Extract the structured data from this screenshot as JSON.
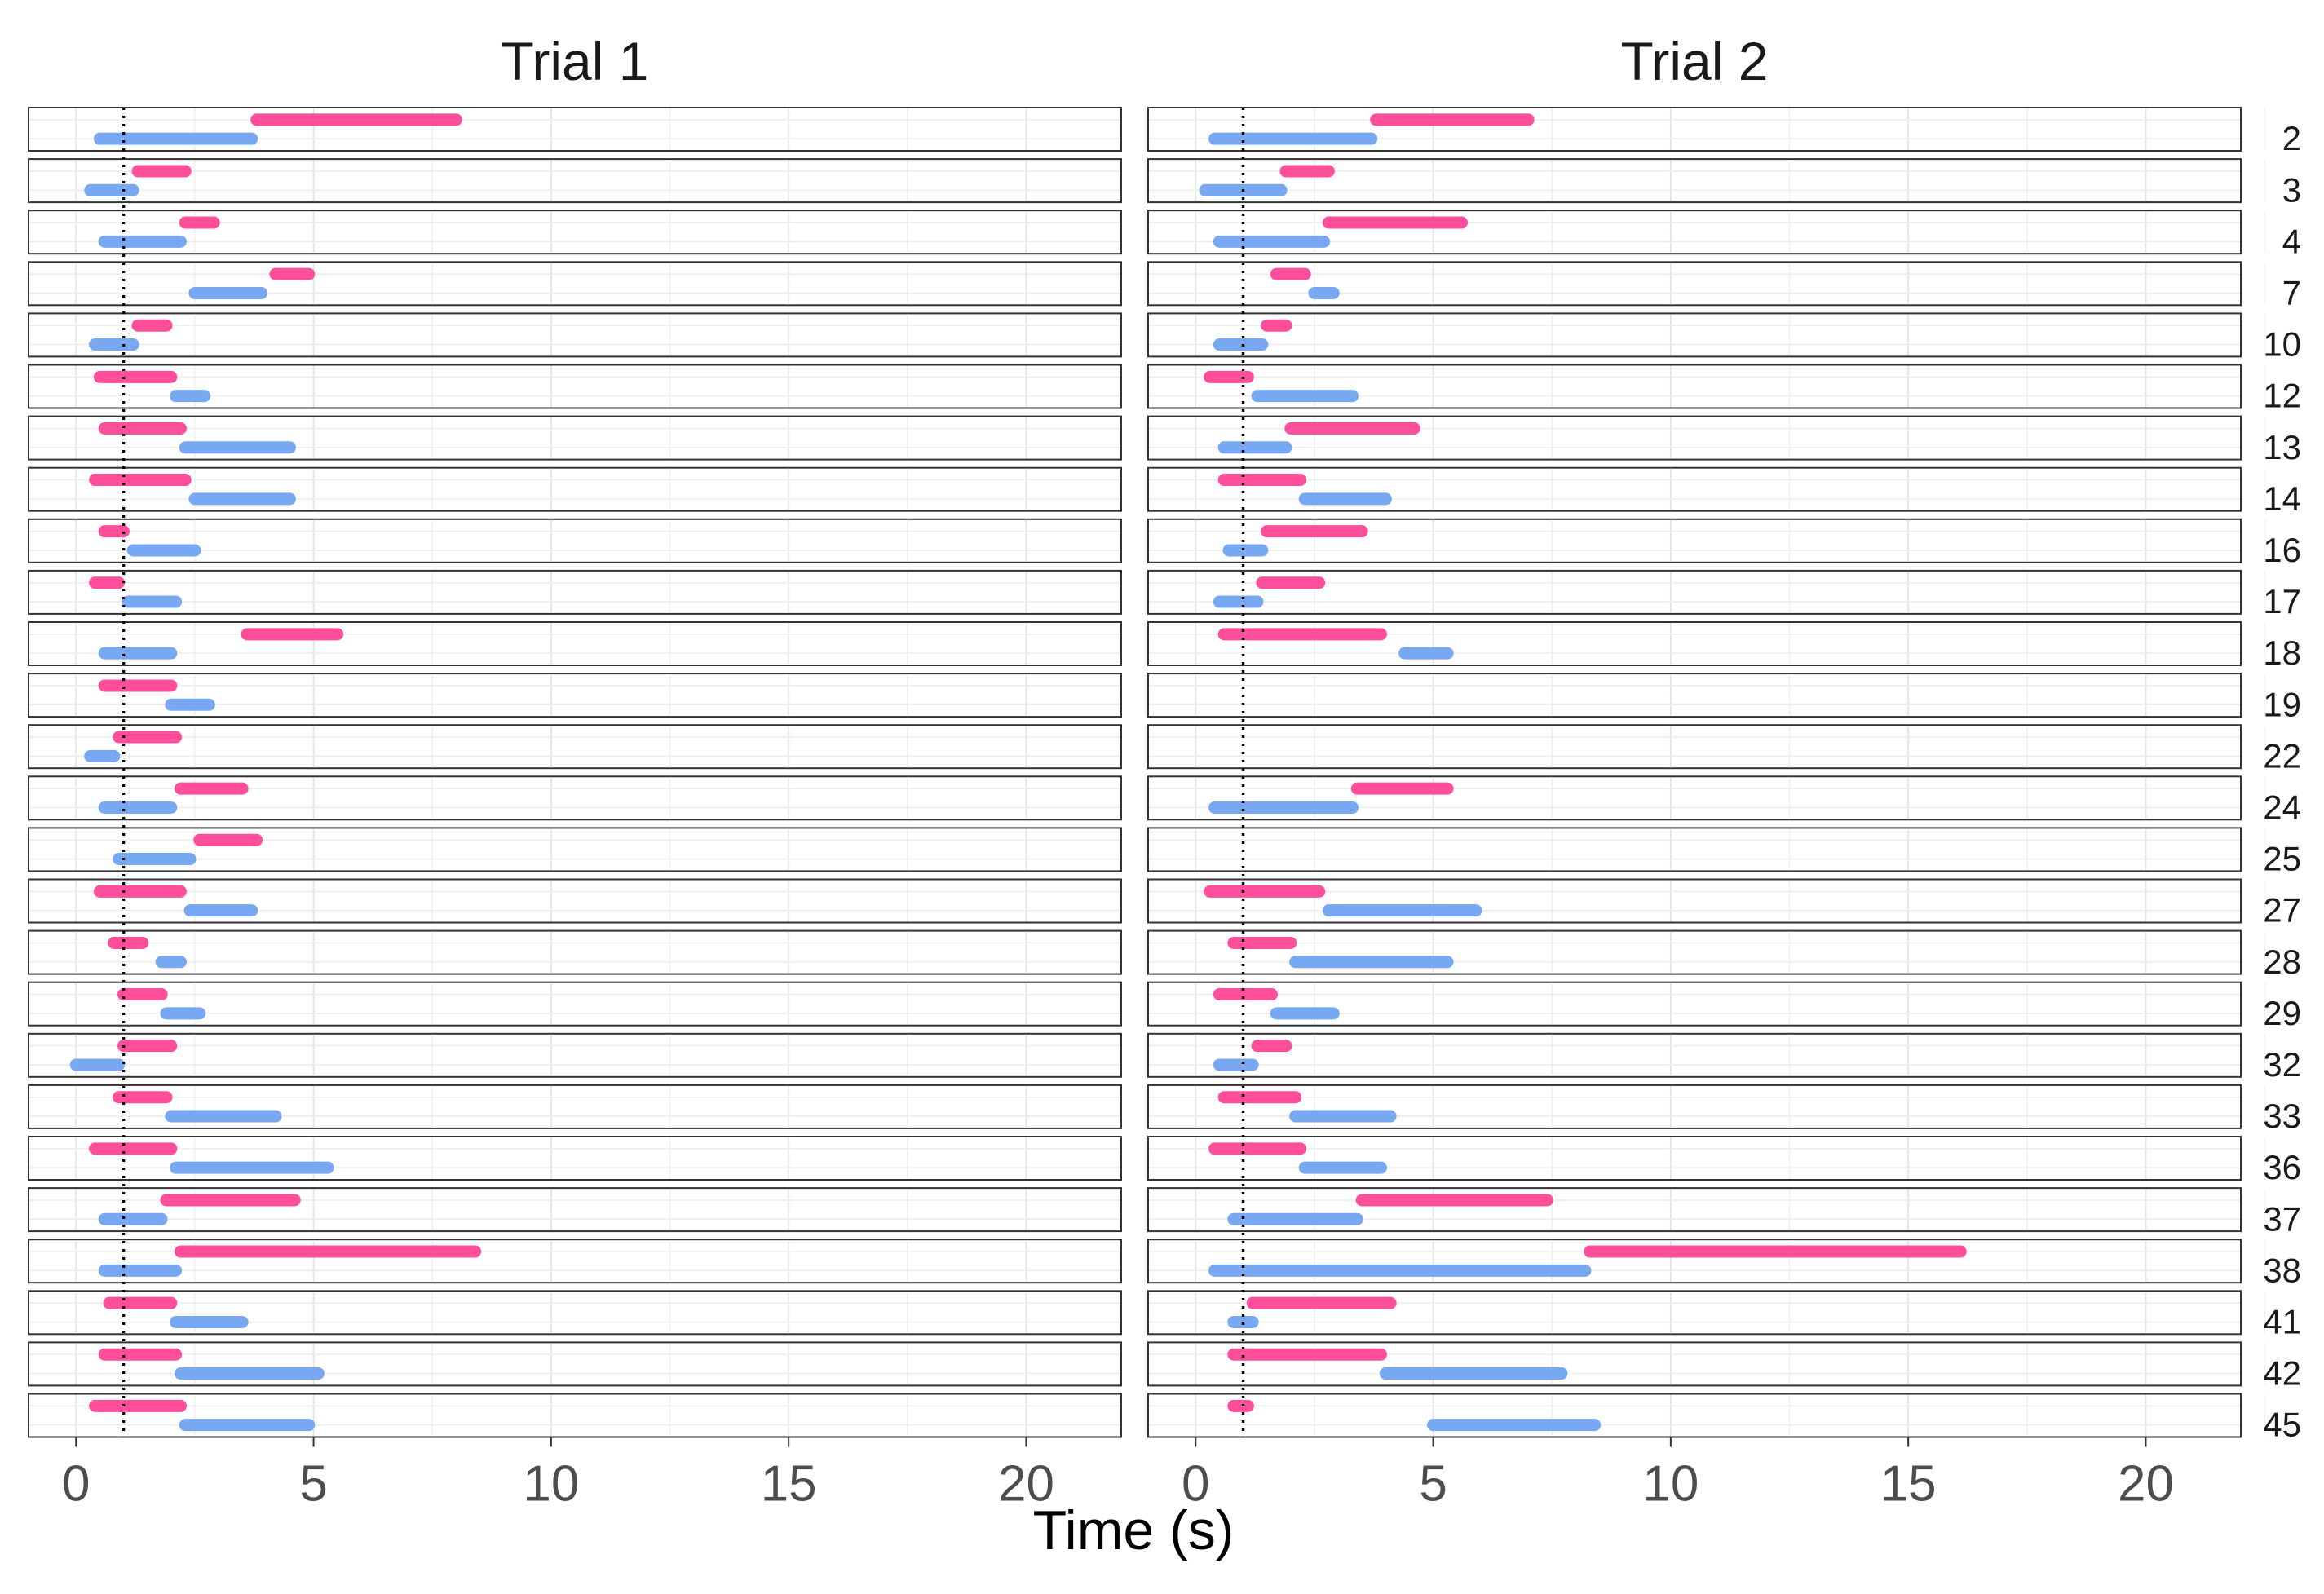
{
  "chart_data": {
    "type": "gantt",
    "xlabel": "Time (s)",
    "xlim": [
      -1,
      22
    ],
    "x_ticks": [
      0,
      5,
      10,
      15,
      20
    ],
    "grid": true,
    "reference_line_x": 1,
    "colors": {
      "pink": "#ff4f9a",
      "blue": "#78a8f2",
      "faint_pink": "#fbd8dc",
      "faint_blue": "#cdf2f5",
      "grid": "#e5e5e5",
      "panel_border": "#333333",
      "panel_bg": "#ffffff"
    },
    "row_labels": [
      "2",
      "3",
      "4",
      "7",
      "10",
      "12",
      "13",
      "14",
      "16",
      "17",
      "18",
      "19",
      "22",
      "24",
      "25",
      "27",
      "28",
      "29",
      "32",
      "33",
      "36",
      "37",
      "38",
      "41",
      "42",
      "45"
    ],
    "panels": [
      {
        "title": "Trial 1",
        "rows": [
          {
            "id": "2",
            "pink": [
              3.8,
              8.0
            ],
            "blue": [
              0.5,
              3.7
            ]
          },
          {
            "id": "3",
            "pink": [
              1.3,
              2.3
            ],
            "blue": [
              0.3,
              1.2
            ]
          },
          {
            "id": "4",
            "pink": [
              2.3,
              2.9
            ],
            "blue": [
              0.6,
              2.2
            ]
          },
          {
            "id": "7",
            "pink": [
              4.2,
              4.9
            ],
            "blue": [
              2.5,
              3.9
            ]
          },
          {
            "id": "10",
            "pink": [
              1.3,
              1.9
            ],
            "blue": [
              0.4,
              1.2
            ]
          },
          {
            "id": "12",
            "pink": [
              0.5,
              2.0
            ],
            "blue": [
              2.1,
              2.7
            ]
          },
          {
            "id": "13",
            "pink": [
              0.6,
              2.2
            ],
            "blue": [
              2.3,
              4.5
            ]
          },
          {
            "id": "14",
            "pink": [
              0.4,
              2.3
            ],
            "blue": [
              2.5,
              4.5
            ]
          },
          {
            "id": "16",
            "pink": [
              0.6,
              1.0
            ],
            "blue": [
              1.2,
              2.5
            ]
          },
          {
            "id": "17",
            "pink": [
              0.4,
              0.9
            ],
            "blue": [
              1.1,
              2.1
            ]
          },
          {
            "id": "18",
            "pink": [
              3.6,
              5.5
            ],
            "blue": [
              0.6,
              2.0
            ]
          },
          {
            "id": "19",
            "pink": [
              0.6,
              2.0
            ],
            "blue": [
              2.0,
              2.8
            ]
          },
          {
            "id": "22",
            "pink": [
              0.9,
              2.1
            ],
            "blue": [
              0.3,
              0.8
            ]
          },
          {
            "id": "24",
            "pink": [
              2.2,
              3.5
            ],
            "blue": [
              0.6,
              2.0
            ]
          },
          {
            "id": "25",
            "pink": [
              2.6,
              3.8
            ],
            "blue": [
              0.9,
              2.4
            ]
          },
          {
            "id": "27",
            "pink": [
              0.5,
              2.2
            ],
            "blue": [
              2.4,
              3.7
            ]
          },
          {
            "id": "28",
            "pink": [
              0.8,
              1.4
            ],
            "blue": [
              1.8,
              2.2
            ]
          },
          {
            "id": "29",
            "pink": [
              1.0,
              1.8
            ],
            "blue": [
              1.9,
              2.6
            ]
          },
          {
            "id": "32",
            "pink": [
              1.0,
              2.0
            ],
            "blue": [
              0.0,
              0.9
            ]
          },
          {
            "id": "33",
            "pink": [
              0.9,
              1.9
            ],
            "blue": [
              2.0,
              4.2
            ]
          },
          {
            "id": "36",
            "pink": [
              0.4,
              2.0
            ],
            "blue": [
              2.1,
              5.3
            ]
          },
          {
            "id": "37",
            "pink": [
              1.9,
              4.6
            ],
            "blue": [
              0.6,
              1.8
            ]
          },
          {
            "id": "38",
            "pink": [
              2.2,
              8.4
            ],
            "blue": [
              0.6,
              2.1
            ]
          },
          {
            "id": "41",
            "pink": [
              0.7,
              2.0
            ],
            "blue": [
              2.1,
              3.5
            ]
          },
          {
            "id": "42",
            "pink": [
              0.6,
              2.1
            ],
            "blue": [
              2.2,
              5.1
            ]
          },
          {
            "id": "45",
            "pink": [
              0.4,
              2.2
            ],
            "blue": [
              2.3,
              4.9
            ]
          }
        ]
      },
      {
        "title": "Trial 2",
        "rows": [
          {
            "id": "2",
            "pink": [
              3.8,
              7.0
            ],
            "blue": [
              0.4,
              3.7
            ]
          },
          {
            "id": "3",
            "pink": [
              1.9,
              2.8
            ],
            "blue": [
              0.2,
              1.8
            ]
          },
          {
            "id": "4",
            "pink": [
              2.8,
              5.6
            ],
            "blue": [
              0.5,
              2.7
            ]
          },
          {
            "id": "7",
            "pink": [
              1.7,
              2.3
            ],
            "blue": [
              2.5,
              2.9
            ]
          },
          {
            "id": "10",
            "pink": [
              1.5,
              1.9
            ],
            "blue": [
              0.5,
              1.4
            ]
          },
          {
            "id": "12",
            "pink": [
              0.3,
              1.1
            ],
            "blue": [
              1.3,
              3.3
            ]
          },
          {
            "id": "13",
            "pink": [
              2.0,
              4.6
            ],
            "blue": [
              0.6,
              1.9
            ]
          },
          {
            "id": "14",
            "pink": [
              0.6,
              2.2
            ],
            "blue": [
              2.3,
              4.0
            ]
          },
          {
            "id": "16",
            "pink": [
              1.5,
              3.5
            ],
            "blue": [
              0.7,
              1.4
            ]
          },
          {
            "id": "17",
            "pink": [
              1.4,
              2.6
            ],
            "blue": [
              0.5,
              1.3
            ]
          },
          {
            "id": "18",
            "pink": [
              0.6,
              3.9
            ],
            "blue": [
              4.4,
              5.3
            ]
          },
          {
            "id": "19",
            "pink": null,
            "blue": null
          },
          {
            "id": "22",
            "pink": null,
            "blue": null
          },
          {
            "id": "24",
            "pink": [
              3.4,
              5.3
            ],
            "blue": [
              0.4,
              3.3
            ]
          },
          {
            "id": "25",
            "pink": null,
            "blue": null
          },
          {
            "id": "27",
            "pink": [
              0.3,
              2.6
            ],
            "blue": [
              2.8,
              5.9
            ]
          },
          {
            "id": "28",
            "pink": [
              0.8,
              2.0
            ],
            "blue": [
              2.1,
              5.3
            ]
          },
          {
            "id": "29",
            "pink": [
              0.5,
              1.6
            ],
            "blue": [
              1.7,
              2.9
            ]
          },
          {
            "id": "32",
            "pink": [
              1.3,
              1.9
            ],
            "blue": [
              0.5,
              1.2
            ]
          },
          {
            "id": "33",
            "pink": [
              0.6,
              2.1
            ],
            "blue": [
              2.1,
              4.1
            ]
          },
          {
            "id": "36",
            "pink": [
              0.4,
              2.2
            ],
            "blue": [
              2.3,
              3.9
            ]
          },
          {
            "id": "37",
            "pink": [
              3.5,
              7.4
            ],
            "blue": [
              0.8,
              3.4
            ]
          },
          {
            "id": "38",
            "pink": [
              8.3,
              16.1
            ],
            "blue": [
              0.4,
              8.2
            ]
          },
          {
            "id": "41",
            "pink": [
              1.2,
              4.1
            ],
            "blue": [
              0.8,
              1.2
            ]
          },
          {
            "id": "42",
            "pink": [
              0.8,
              3.9
            ],
            "blue": [
              4.0,
              7.7
            ]
          },
          {
            "id": "45",
            "pink": [
              0.8,
              1.1
            ],
            "blue": [
              5.0,
              8.4
            ]
          }
        ]
      }
    ]
  }
}
